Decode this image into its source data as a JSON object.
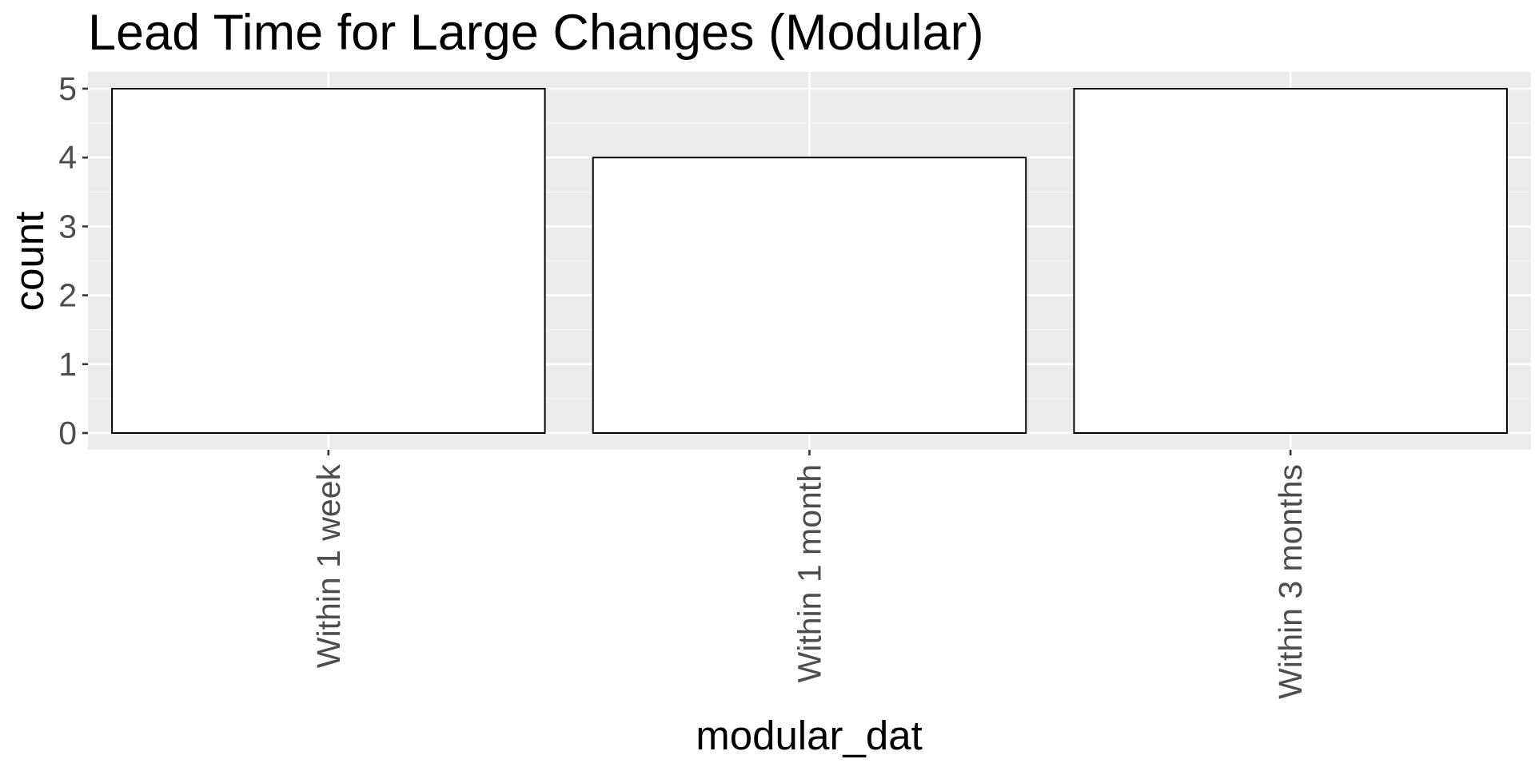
{
  "chart_data": {
    "type": "bar",
    "title": "Lead Time for Large Changes (Modular)",
    "xlabel": "modular_dat",
    "ylabel": "count",
    "categories": [
      "Within 1 week",
      "Within 1 month",
      "Within 3 months"
    ],
    "values": [
      5,
      4,
      5
    ],
    "yticks": [
      "0",
      "1",
      "2",
      "3",
      "4",
      "5"
    ],
    "ylim": [
      0,
      5
    ],
    "grid": true,
    "legend": "none",
    "colors": {
      "panel_background": "#ebebeb",
      "grid_major": "#ffffff",
      "grid_minor": "#f5f5f5",
      "bar_fill": "#ffffff",
      "bar_outline": "#000000",
      "tick_text": "#4d4d4d",
      "title_text": "#000000"
    }
  }
}
